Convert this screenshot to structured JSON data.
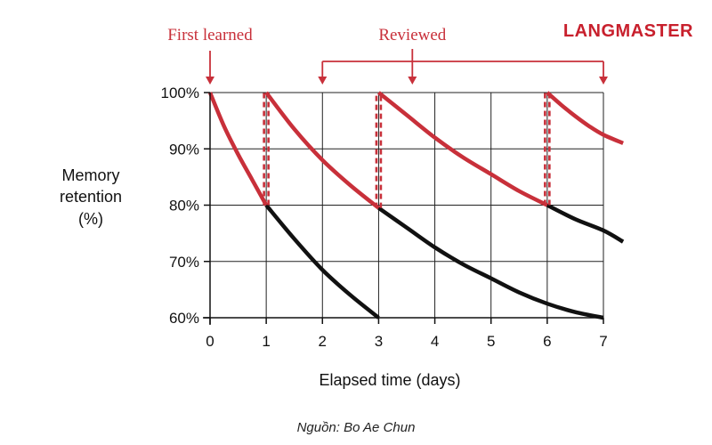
{
  "brand": {
    "logo_text": "LANGMASTER",
    "color": "#c8202d"
  },
  "source_text": "Nguồn: Bo Ae Chun",
  "chart_data": {
    "type": "line",
    "title": "",
    "xlabel": "Elapsed time (days)",
    "ylabel_lines": [
      "Memory",
      "retention",
      "(%)"
    ],
    "xlim": [
      0,
      7
    ],
    "ylim": [
      60,
      100
    ],
    "x_ticks": [
      0,
      1,
      2,
      3,
      4,
      5,
      6,
      7
    ],
    "y_ticks": [
      {
        "value": 60,
        "label": "60%"
      },
      {
        "value": 70,
        "label": "70%"
      },
      {
        "value": 80,
        "label": "80%"
      },
      {
        "value": 90,
        "label": "90%"
      },
      {
        "value": 100,
        "label": "100%"
      }
    ],
    "grid": true,
    "colors": {
      "reviewed": "#c8303a",
      "forgetting": "#111111"
    },
    "annotations": {
      "first_learned": {
        "label": "First learned",
        "x": 0
      },
      "reviewed": {
        "label": "Reviewed",
        "bracket_x": [
          2,
          7
        ],
        "label_x": 3.6
      }
    },
    "series": [
      {
        "color": "#c8303a",
        "points": [
          [
            0,
            100
          ],
          [
            0.25,
            94
          ],
          [
            0.5,
            89
          ],
          [
            0.75,
            84.5
          ],
          [
            1,
            80
          ]
        ]
      },
      {
        "color": "#c8303a",
        "points": [
          [
            1,
            100
          ],
          [
            1.5,
            93.5
          ],
          [
            2,
            88
          ],
          [
            2.5,
            83.5
          ],
          [
            3,
            79.5
          ]
        ]
      },
      {
        "color": "#c8303a",
        "points": [
          [
            3,
            100
          ],
          [
            3.5,
            96
          ],
          [
            4,
            92
          ],
          [
            4.5,
            88.5
          ],
          [
            5,
            85.5
          ],
          [
            5.5,
            82.5
          ],
          [
            6,
            80
          ]
        ]
      },
      {
        "color": "#c8303a",
        "points": [
          [
            6,
            100
          ],
          [
            6.25,
            97.8
          ],
          [
            6.5,
            95.8
          ],
          [
            6.75,
            94
          ],
          [
            7,
            92.5
          ],
          [
            7.35,
            91
          ]
        ]
      },
      {
        "color": "#111111",
        "points": [
          [
            1,
            80
          ],
          [
            1.5,
            74
          ],
          [
            2,
            68.5
          ],
          [
            2.5,
            64
          ],
          [
            3,
            60
          ]
        ]
      },
      {
        "color": "#111111",
        "points": [
          [
            3,
            79.5
          ],
          [
            3.5,
            76
          ],
          [
            4,
            72.5
          ],
          [
            4.5,
            69.5
          ],
          [
            5,
            67
          ],
          [
            5.5,
            64.5
          ],
          [
            6,
            62.5
          ],
          [
            6.5,
            61
          ],
          [
            7,
            60
          ]
        ]
      },
      {
        "color": "#111111",
        "points": [
          [
            6,
            80
          ],
          [
            6.5,
            77.5
          ],
          [
            7,
            75.5
          ],
          [
            7.35,
            73.5
          ]
        ]
      }
    ],
    "review_jumps": [
      {
        "x": 1,
        "from": 80,
        "to": 100
      },
      {
        "x": 3,
        "from": 79.5,
        "to": 100
      },
      {
        "x": 6,
        "from": 80,
        "to": 100
      }
    ]
  }
}
